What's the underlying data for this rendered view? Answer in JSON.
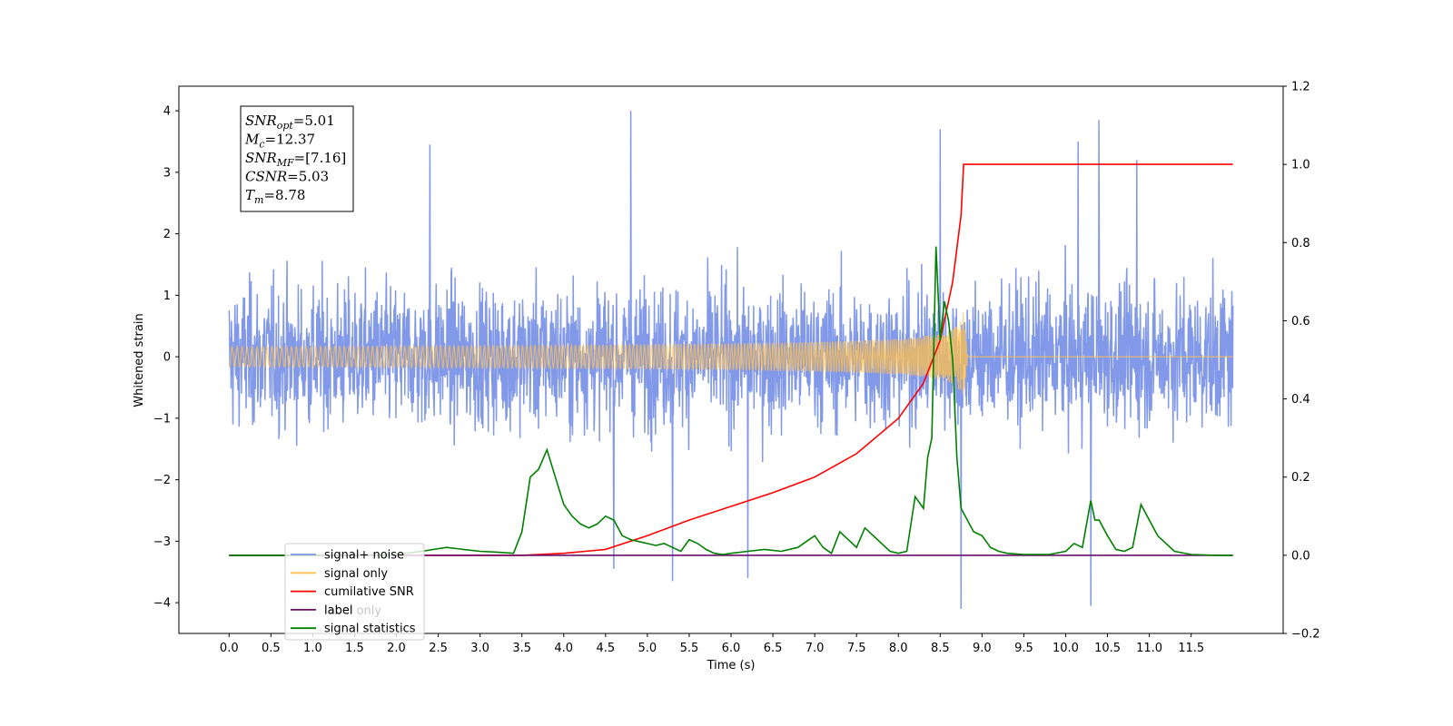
{
  "chart_data": {
    "type": "line",
    "xlabel": "Time (s)",
    "ylabel": "Whitened strain",
    "xlim": [
      -0.6,
      12.6
    ],
    "ylim": [
      -4.5,
      4.4
    ],
    "y2lim": [
      -0.2,
      1.2
    ],
    "x_ticks": [
      "0.0",
      "0.5",
      "1.0",
      "1.5",
      "2.0",
      "2.5",
      "3.0",
      "3.5",
      "4.0",
      "4.5",
      "5.0",
      "5.5",
      "6.0",
      "6.5",
      "7.0",
      "7.5",
      "8.0",
      "8.5",
      "9.0",
      "9.5",
      "10.0",
      "10.5",
      "11.0",
      "11.5"
    ],
    "y_ticks": [
      "4",
      "3",
      "2",
      "1",
      "0",
      "−1",
      "−2",
      "−3",
      "−4"
    ],
    "y2_ticks": [
      "1.2",
      "1.0",
      "0.8",
      "0.6",
      "0.4",
      "0.2",
      "0.0",
      "−0.2"
    ],
    "annotation": {
      "lines": [
        {
          "base": "SNR",
          "sub": "opt",
          "rest": "=5.01"
        },
        {
          "base": "M",
          "sub": "c",
          "rest": "=12.37"
        },
        {
          "base": "SNR",
          "sub": "MF",
          "rest": "=[7.16]"
        },
        {
          "base": "CSNR",
          "sub": "",
          "rest": "=5.03"
        },
        {
          "base": "T",
          "sub": "m",
          "rest": "=8.78"
        }
      ]
    },
    "legend": {
      "placement": "lower-left",
      "entries": [
        {
          "label": "signal+ noise",
          "color": "#7b94e8"
        },
        {
          "label": "signal only",
          "color": "#ffc04d"
        },
        {
          "label": "cumilative SNR",
          "color": "#ff0000"
        },
        {
          "label": "label",
          "color": "#6a0f6a"
        },
        {
          "label": "signal statistics",
          "color": "#008000"
        }
      ],
      "hidden_label": "label only"
    },
    "series": [
      {
        "name": "signal+ noise",
        "axis": "left",
        "color": "#7b94e8",
        "x_range": [
          0.0,
          12.0
        ],
        "amplitude": 1.9,
        "spikes": [
          [
            4.8,
            4.0
          ],
          [
            8.5,
            3.7
          ],
          [
            10.4,
            3.85
          ],
          [
            10.15,
            3.5
          ],
          [
            10.85,
            3.2
          ],
          [
            2.4,
            3.45
          ],
          [
            8.75,
            -4.1
          ],
          [
            10.3,
            -4.05
          ],
          [
            5.3,
            -3.65
          ],
          [
            4.6,
            -3.45
          ],
          [
            6.2,
            -3.6
          ]
        ]
      },
      {
        "name": "signal only",
        "axis": "left",
        "color": "#ffc04d",
        "chirp_end": 8.78,
        "peak_amplitude": 0.75
      },
      {
        "name": "cumilative SNR",
        "axis": "right",
        "color": "#ff0000",
        "x": [
          0.0,
          3.5,
          4.0,
          4.5,
          5.0,
          5.5,
          6.0,
          6.5,
          7.0,
          7.5,
          8.0,
          8.3,
          8.5,
          8.65,
          8.75,
          8.78,
          12.0
        ],
        "y": [
          0.0,
          0.0,
          0.005,
          0.015,
          0.05,
          0.09,
          0.125,
          0.16,
          0.2,
          0.26,
          0.35,
          0.44,
          0.55,
          0.7,
          0.87,
          1.0,
          1.0
        ]
      },
      {
        "name": "label",
        "axis": "right",
        "color": "#6a0f6a",
        "x": [
          0.0,
          12.0
        ],
        "y": [
          0.0,
          0.0
        ]
      },
      {
        "name": "signal statistics",
        "axis": "right",
        "color": "#008000",
        "x": [
          0.0,
          0.5,
          1.0,
          1.5,
          2.0,
          2.3,
          2.6,
          2.8,
          3.0,
          3.2,
          3.4,
          3.5,
          3.6,
          3.7,
          3.8,
          3.9,
          4.0,
          4.1,
          4.2,
          4.3,
          4.4,
          4.5,
          4.6,
          4.7,
          4.8,
          4.9,
          5.0,
          5.1,
          5.2,
          5.3,
          5.4,
          5.5,
          5.6,
          5.7,
          5.8,
          5.9,
          6.0,
          6.2,
          6.4,
          6.6,
          6.8,
          7.0,
          7.1,
          7.2,
          7.3,
          7.4,
          7.5,
          7.6,
          7.7,
          7.8,
          7.9,
          8.0,
          8.1,
          8.2,
          8.3,
          8.35,
          8.4,
          8.45,
          8.5,
          8.55,
          8.6,
          8.65,
          8.7,
          8.75,
          8.8,
          8.85,
          8.9,
          9.0,
          9.1,
          9.2,
          9.3,
          9.5,
          9.8,
          10.0,
          10.1,
          10.2,
          10.3,
          10.35,
          10.4,
          10.5,
          10.6,
          10.7,
          10.8,
          10.9,
          11.0,
          11.1,
          11.2,
          11.3,
          11.5,
          11.8,
          12.0
        ],
        "y": [
          0.0,
          0.0,
          0.0,
          0.0,
          0.002,
          0.01,
          0.02,
          0.015,
          0.01,
          0.008,
          0.005,
          0.06,
          0.2,
          0.22,
          0.27,
          0.2,
          0.13,
          0.1,
          0.08,
          0.07,
          0.08,
          0.1,
          0.09,
          0.05,
          0.04,
          0.035,
          0.03,
          0.025,
          0.03,
          0.02,
          0.01,
          0.04,
          0.03,
          0.015,
          0.005,
          0.002,
          0.005,
          0.01,
          0.015,
          0.01,
          0.02,
          0.05,
          0.02,
          0.005,
          0.06,
          0.04,
          0.02,
          0.07,
          0.05,
          0.03,
          0.01,
          0.005,
          0.01,
          0.15,
          0.12,
          0.25,
          0.3,
          0.79,
          0.55,
          0.65,
          0.6,
          0.5,
          0.25,
          0.12,
          0.1,
          0.08,
          0.06,
          0.05,
          0.02,
          0.01,
          0.005,
          0.002,
          0.002,
          0.01,
          0.03,
          0.02,
          0.14,
          0.09,
          0.09,
          0.05,
          0.015,
          0.01,
          0.02,
          0.13,
          0.09,
          0.05,
          0.03,
          0.01,
          0.002,
          0.0,
          0.0
        ]
      }
    ]
  }
}
